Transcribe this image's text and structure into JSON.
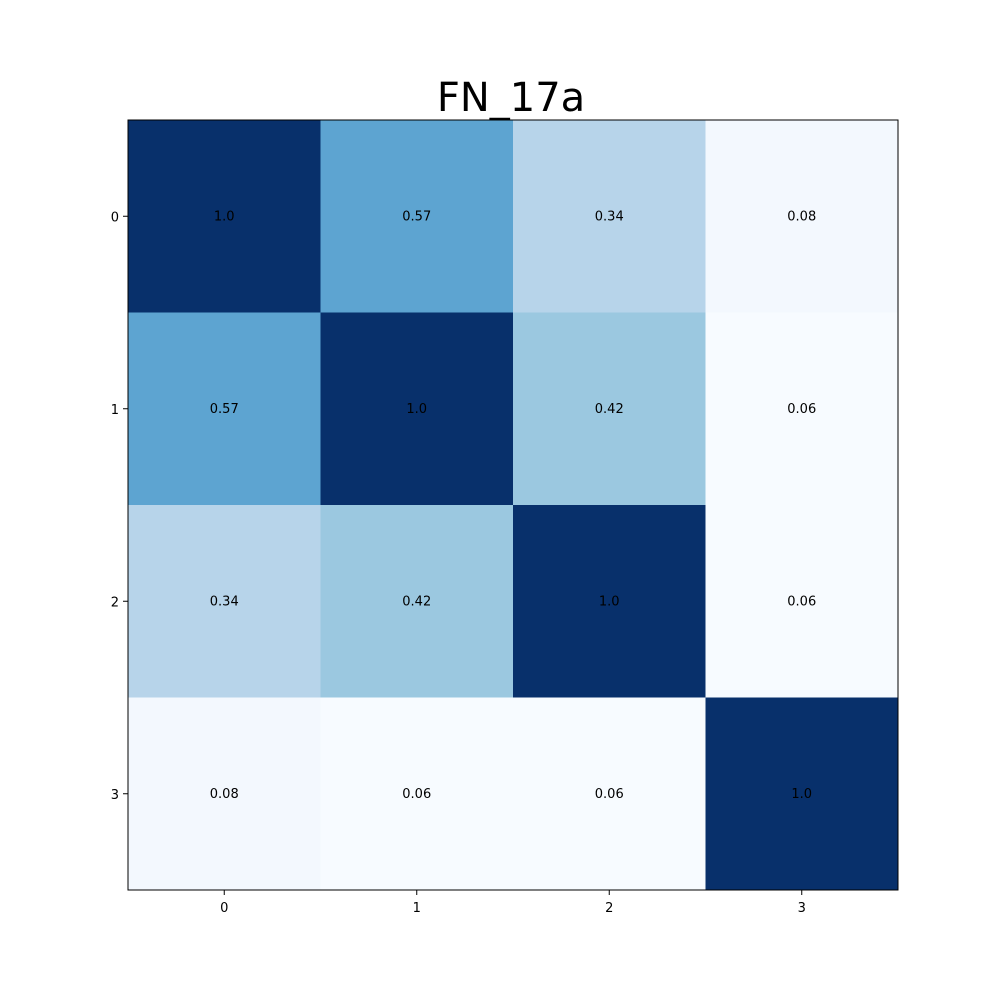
{
  "chart_data": {
    "type": "heatmap",
    "title": "FN_17a",
    "xlabel": "",
    "ylabel": "",
    "x_categories": [
      "0",
      "1",
      "2",
      "3"
    ],
    "y_categories": [
      "0",
      "1",
      "2",
      "3"
    ],
    "values": [
      [
        1.0,
        0.57,
        0.34,
        0.08
      ],
      [
        0.57,
        1.0,
        0.42,
        0.06
      ],
      [
        0.34,
        0.42,
        1.0,
        0.06
      ],
      [
        0.08,
        0.06,
        0.06,
        1.0
      ]
    ],
    "cell_labels": [
      [
        "1.0",
        "0.57",
        "0.34",
        "0.08"
      ],
      [
        "0.57",
        "1.0",
        "0.42",
        "0.06"
      ],
      [
        "0.34",
        "0.42",
        "1.0",
        "0.06"
      ],
      [
        "0.08",
        "0.06",
        "0.06",
        "1.0"
      ]
    ],
    "value_range": [
      0.06,
      1.0
    ],
    "colormap": "Blues",
    "colormap_low": "#f7fbff",
    "colormap_high": "#08306b",
    "grid": false,
    "legend": "none"
  }
}
